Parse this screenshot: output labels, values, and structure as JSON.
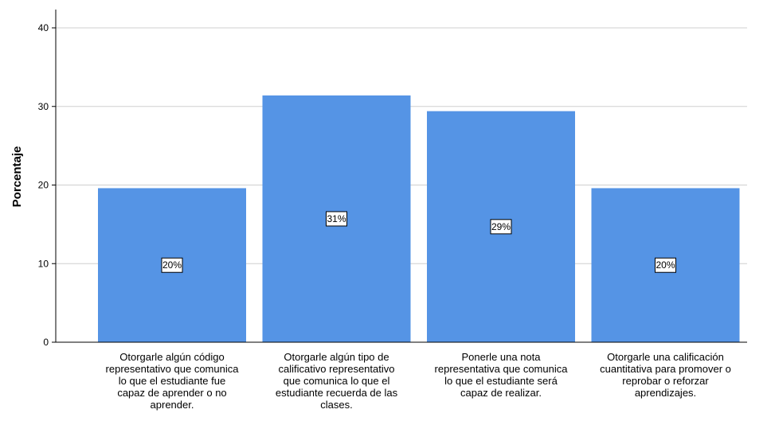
{
  "chart_data": {
    "type": "bar",
    "title": "",
    "xlabel": "",
    "ylabel": "Porcentaje",
    "ylim": [
      0,
      40
    ],
    "yticks": [
      0,
      10,
      20,
      30,
      40
    ],
    "grid": true,
    "bar_color": "#5594e5",
    "categories": [
      [
        "Otorgarle algún código",
        "representativo que comunica",
        "lo que el estudiante fue",
        "capaz de aprender o no",
        "aprender."
      ],
      [
        "Otorgarle algún tipo de",
        "calificativo representativo",
        "que comunica lo que el",
        "estudiante recuerda de las",
        "clases."
      ],
      [
        "Ponerle una nota",
        "representativa que comunica",
        "lo que el estudiante será",
        "capaz de realizar."
      ],
      [
        "Otorgarle una calificación",
        "cuantitativa para promover o",
        "reprobar o reforzar",
        "aprendizajes."
      ]
    ],
    "values": [
      19.6,
      31.4,
      29.4,
      19.6
    ],
    "data_labels": [
      "20%",
      "31%",
      "29%",
      "20%"
    ]
  }
}
